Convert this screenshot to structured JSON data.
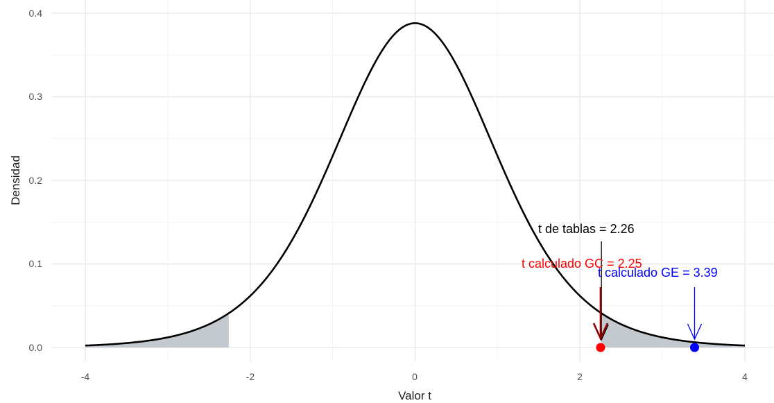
{
  "chart_data": {
    "type": "line",
    "title": "",
    "xlabel": "Valor t",
    "ylabel": "Densidad",
    "xlim": [
      -4,
      4
    ],
    "ylim": [
      0,
      0.4
    ],
    "grid": true,
    "x_ticks": [
      "-4",
      "-2",
      "0",
      "2",
      "4"
    ],
    "y_ticks": [
      "0.0",
      "0.1",
      "0.2",
      "0.3",
      "0.4"
    ],
    "distribution": "Student t",
    "degrees_of_freedom": 9,
    "critical_value": 2.26,
    "shaded_tails": [
      [
        -4,
        -2.26
      ],
      [
        2.26,
        4
      ]
    ],
    "curve_color": "#000000",
    "shade_color": "#c4c9cf",
    "annotations": [
      {
        "label": "t de tablas = 2.26",
        "x": 2.26,
        "color": "#000000"
      },
      {
        "label": "t calculado GC = 2.25",
        "x": 2.25,
        "color": "#ff0000"
      },
      {
        "label": "t calculado GE = 3.39",
        "x": 3.39,
        "color": "#0000ff"
      }
    ],
    "points": [
      {
        "x": 2.25,
        "y": 0,
        "color": "#ff0000"
      },
      {
        "x": 3.39,
        "y": 0,
        "color": "#0000ff"
      }
    ]
  }
}
